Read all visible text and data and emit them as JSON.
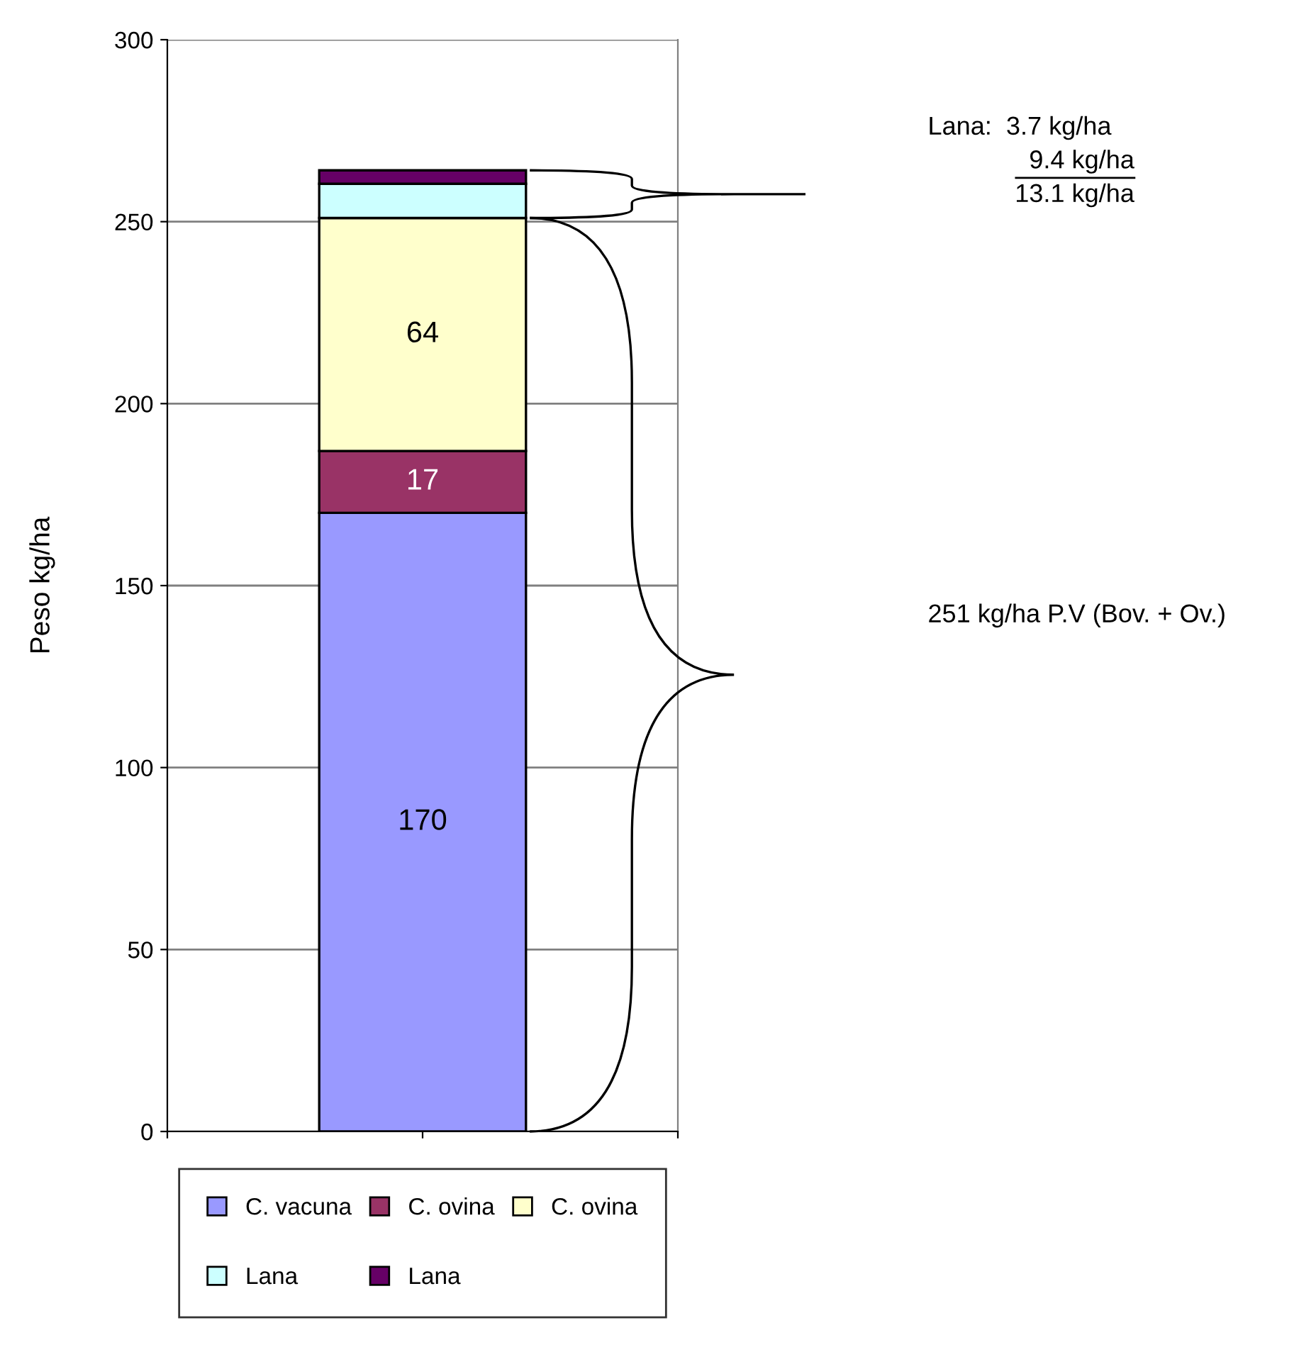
{
  "chart_data": {
    "type": "bar",
    "stacked": true,
    "categories": [
      null
    ],
    "ylabel": "Peso kg/ha",
    "series": [
      {
        "name": "C. vacuna",
        "color": "#9999ff",
        "values": [
          170
        ],
        "value_labels": [
          "170"
        ]
      },
      {
        "name": "C. ovina",
        "color": "#993366",
        "values": [
          17
        ],
        "value_labels": [
          "17"
        ]
      },
      {
        "name": "C. ovina",
        "color": "#ffffcc",
        "values": [
          64
        ],
        "value_labels": [
          "64"
        ]
      },
      {
        "name": "Lana",
        "color": "#ccffff",
        "values": [
          9.4
        ],
        "value_labels": [
          null
        ]
      },
      {
        "name": "Lana",
        "color": "#660066",
        "values": [
          3.7
        ],
        "value_labels": [
          null
        ]
      }
    ],
    "ylim": [
      0,
      300
    ],
    "yticks": [
      0,
      50,
      100,
      150,
      200,
      250,
      300
    ],
    "grid": "y",
    "legend": "bottom",
    "tick_labels": "y",
    "annotations": [
      "Lana:  3.7 kg/ha",
      "9.4 kg/ha",
      "13.1 kg/ha",
      "251 kg/ha P.V (Bov. + Ov.)"
    ]
  }
}
